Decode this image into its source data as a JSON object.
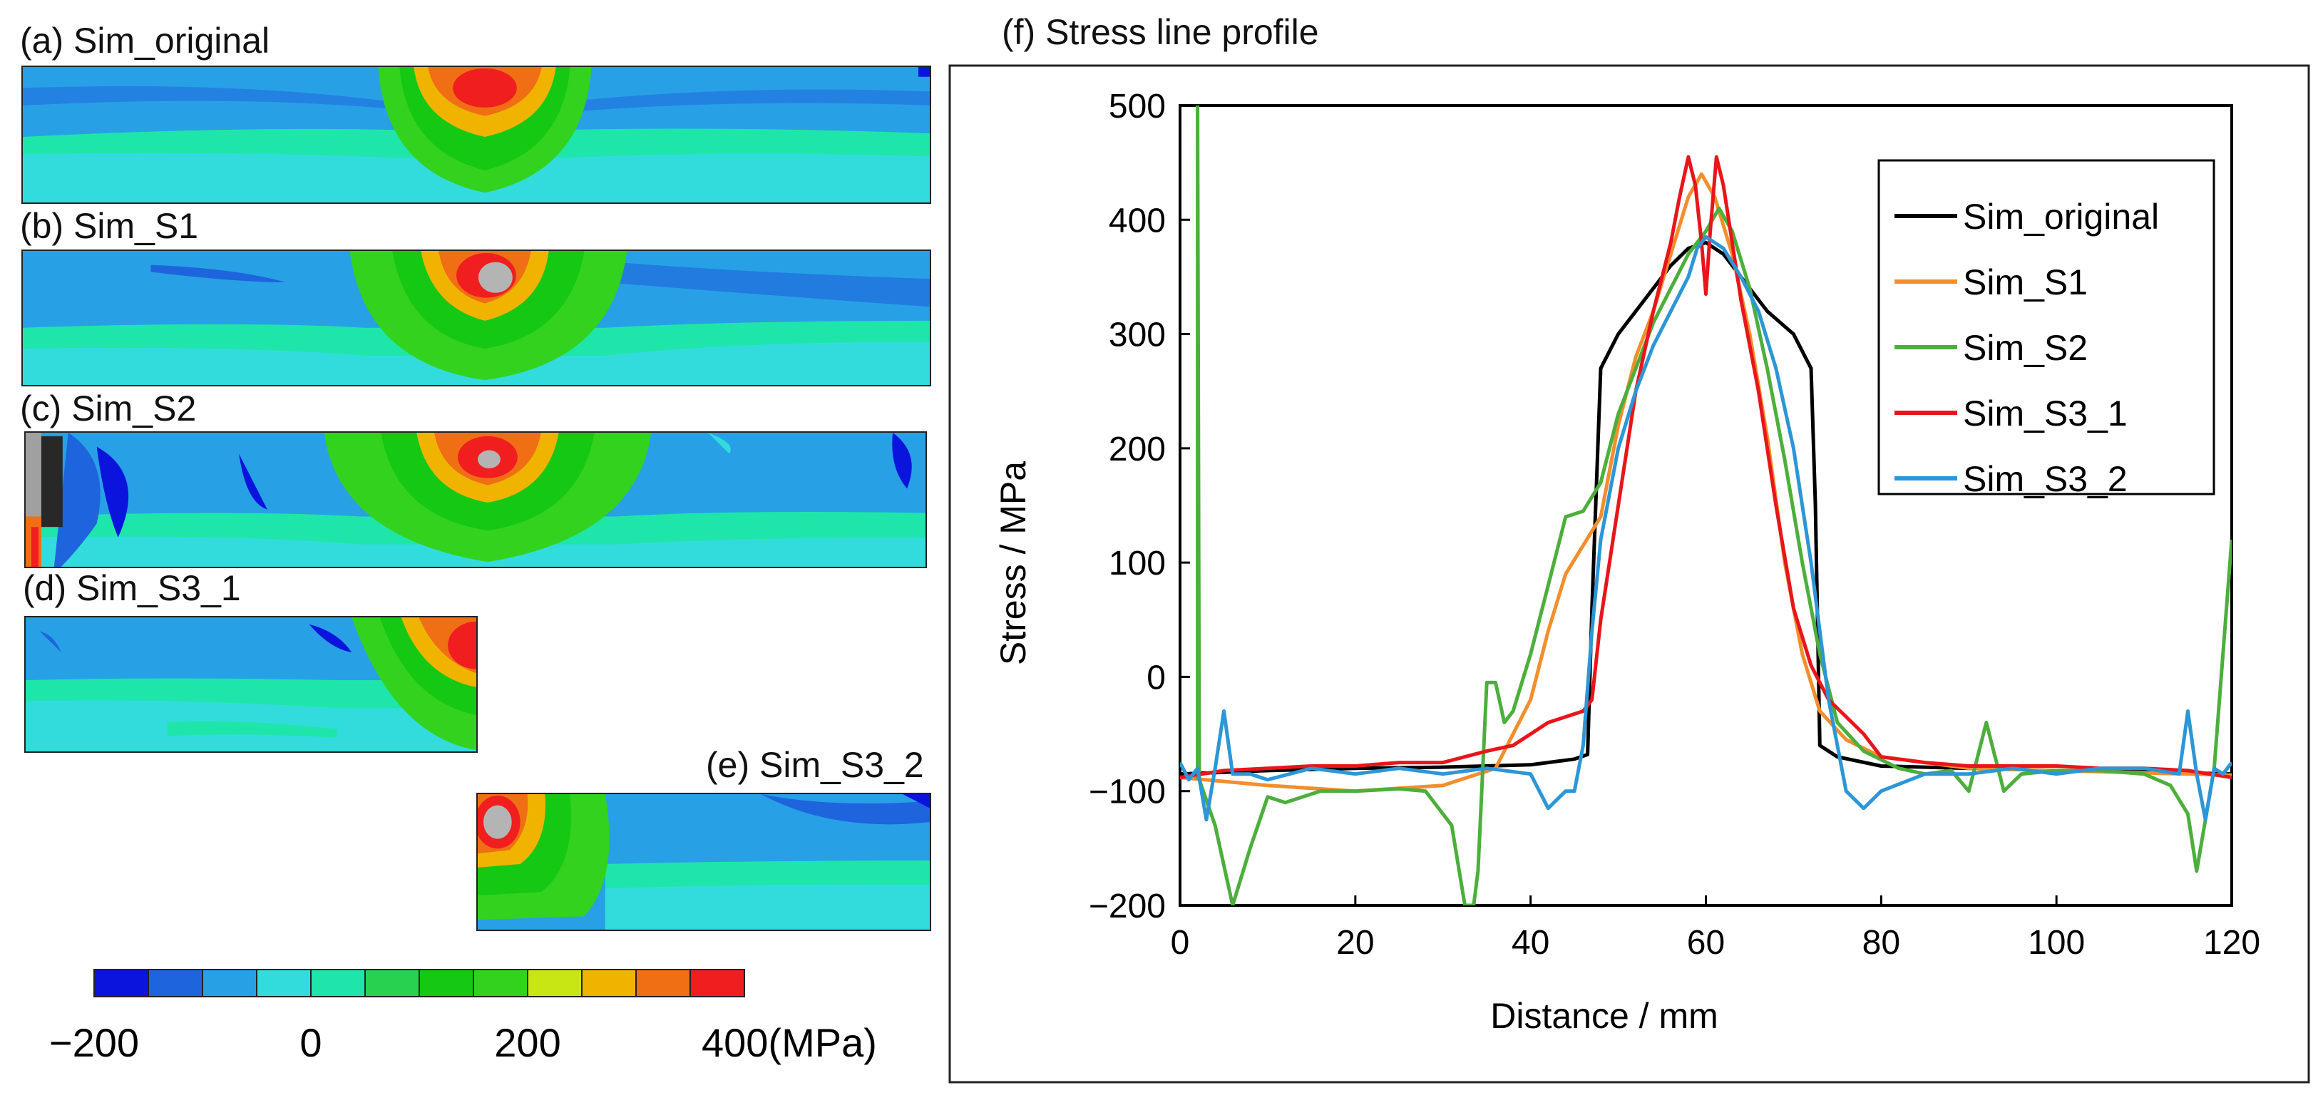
{
  "panels": {
    "a": {
      "title": "(a) Sim_original"
    },
    "b": {
      "title": "(b) Sim_S1"
    },
    "c": {
      "title": "(c) Sim_S2"
    },
    "d": {
      "title": "(d) Sim_S3_1"
    },
    "e": {
      "title": "(e) Sim_S3_2"
    }
  },
  "colorbar": {
    "colors": [
      "#0a14dc",
      "#1e64dc",
      "#28a0e6",
      "#32dcdc",
      "#1ee6aa",
      "#28d250",
      "#14c814",
      "#32d21e",
      "#c8e614",
      "#f0b400",
      "#f06e14",
      "#f01e1e"
    ],
    "tick_labels": [
      "−200",
      "0",
      "200",
      "400(MPa)"
    ],
    "tick_values": [
      -200,
      0,
      200,
      400
    ],
    "min": -200,
    "max": 400
  },
  "chart_data": {
    "type": "line",
    "title": "(f) Stress line profile",
    "xlabel": "Distance / mm",
    "ylabel": "Stress / MPa",
    "xlim": [
      0,
      120
    ],
    "ylim": [
      -200,
      500
    ],
    "xticks": [
      0,
      20,
      40,
      60,
      80,
      100,
      120
    ],
    "yticks": [
      -200,
      -100,
      0,
      100,
      200,
      300,
      400,
      500
    ],
    "legend_position": "top-right",
    "series": [
      {
        "name": "Sim_original",
        "color": "#000000",
        "x": [
          0,
          10,
          20,
          30,
          40,
          45,
          46.5,
          47,
          48,
          50,
          53,
          56,
          58,
          60,
          62,
          64,
          67,
          70,
          72,
          72.5,
          73,
          75,
          80,
          90,
          100,
          110,
          120
        ],
        "y": [
          -85,
          -82,
          -80,
          -79,
          -77,
          -72,
          -68,
          60,
          270,
          300,
          330,
          360,
          375,
          380,
          370,
          350,
          320,
          300,
          270,
          150,
          -60,
          -70,
          -78,
          -80,
          -82,
          -83,
          -85
        ]
      },
      {
        "name": "Sim_S1",
        "color": "#f28e2b",
        "x": [
          0,
          10,
          20,
          30,
          36,
          40,
          42,
          44,
          46,
          48,
          50,
          52,
          54,
          56,
          58,
          59.5,
          61,
          63,
          65,
          67,
          69,
          71,
          73,
          76,
          80,
          90,
          100,
          110,
          120
        ],
        "y": [
          -88,
          -95,
          -100,
          -95,
          -80,
          -20,
          40,
          90,
          115,
          140,
          220,
          280,
          320,
          370,
          420,
          440,
          420,
          370,
          300,
          210,
          100,
          20,
          -30,
          -55,
          -70,
          -80,
          -82,
          -84,
          -86
        ]
      },
      {
        "name": "Sim_S2",
        "color": "#4caf3c",
        "x": [
          2,
          2,
          2.2,
          4,
          6,
          8,
          10,
          12,
          16,
          20,
          25,
          28,
          31,
          32.5,
          33.5,
          34,
          35,
          36,
          37,
          38,
          40,
          42,
          44,
          46,
          48,
          50,
          52,
          54,
          56,
          58,
          60,
          61.5,
          63,
          65,
          67,
          69,
          71,
          73,
          75,
          78,
          82,
          85,
          88,
          90,
          92,
          94,
          96,
          100,
          105,
          110,
          113,
          115,
          116,
          118,
          120
        ],
        "y": [
          -90,
          500,
          -90,
          -130,
          -200,
          -150,
          -105,
          -110,
          -100,
          -100,
          -98,
          -100,
          -130,
          -200,
          -200,
          -170,
          -5,
          -5,
          -40,
          -30,
          20,
          80,
          140,
          145,
          170,
          230,
          270,
          310,
          340,
          370,
          390,
          410,
          390,
          340,
          270,
          190,
          100,
          20,
          -40,
          -65,
          -80,
          -85,
          -82,
          -100,
          -40,
          -100,
          -85,
          -82,
          -82,
          -85,
          -95,
          -120,
          -170,
          -80,
          120
        ]
      },
      {
        "name": "Sim_S3_1",
        "color": "#e8151b",
        "x": [
          0,
          5,
          10,
          15,
          20,
          25,
          30,
          35,
          38,
          40,
          42,
          44,
          46,
          47,
          48,
          50,
          52,
          54,
          56,
          57,
          58,
          58.8,
          59.5,
          60,
          60.5,
          61.2,
          62,
          63,
          64,
          66,
          68,
          70,
          72,
          74,
          76,
          78,
          80,
          85,
          90,
          95,
          100,
          105,
          110,
          115,
          120
        ],
        "y": [
          -88,
          -82,
          -80,
          -78,
          -78,
          -75,
          -75,
          -65,
          -60,
          -50,
          -40,
          -35,
          -30,
          -20,
          50,
          150,
          250,
          320,
          380,
          420,
          455,
          430,
          380,
          335,
          390,
          455,
          430,
          380,
          330,
          250,
          150,
          60,
          10,
          -20,
          -35,
          -50,
          -70,
          -75,
          -78,
          -78,
          -78,
          -80,
          -80,
          -82,
          -88
        ]
      },
      {
        "name": "Sim_S3_2",
        "color": "#2c96d6",
        "x": [
          0,
          1,
          2,
          3,
          4,
          5,
          6,
          8,
          10,
          15,
          20,
          25,
          30,
          35,
          40,
          42,
          44,
          45,
          46,
          47,
          48,
          50,
          52,
          54,
          56,
          58,
          59,
          60,
          61,
          62,
          64,
          66,
          68,
          70,
          72,
          74,
          75,
          76,
          78,
          80,
          85,
          90,
          95,
          100,
          105,
          110,
          114,
          115,
          116,
          117,
          118,
          119,
          120
        ],
        "y": [
          -75,
          -90,
          -80,
          -125,
          -80,
          -30,
          -85,
          -85,
          -90,
          -80,
          -85,
          -80,
          -85,
          -80,
          -85,
          -115,
          -100,
          -100,
          -60,
          40,
          120,
          200,
          250,
          290,
          320,
          350,
          375,
          385,
          380,
          375,
          350,
          320,
          270,
          200,
          100,
          -20,
          -60,
          -100,
          -115,
          -100,
          -85,
          -85,
          -80,
          -85,
          -80,
          -80,
          -85,
          -30,
          -85,
          -125,
          -80,
          -85,
          -75
        ]
      }
    ]
  }
}
